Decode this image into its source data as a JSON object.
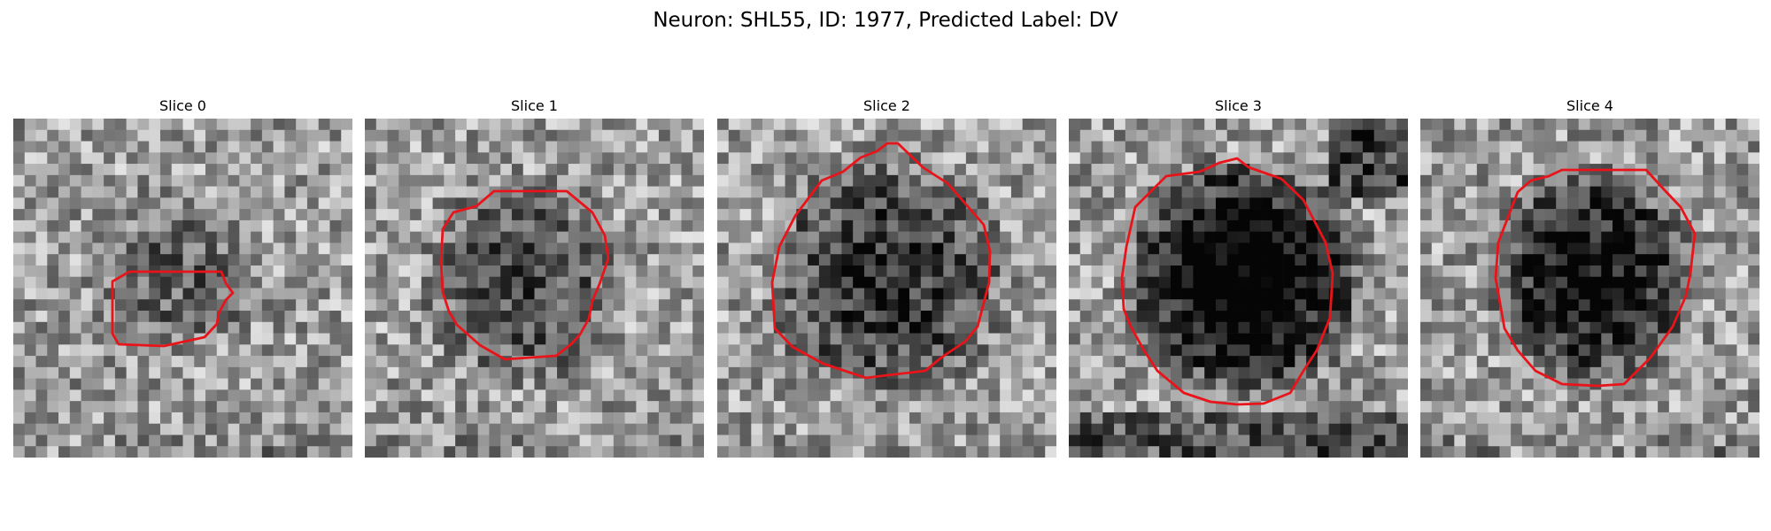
{
  "figure": {
    "title": "Neuron: SHL55, ID: 1977, Predicted Label: DV"
  },
  "colors": {
    "contour": "#e8141a",
    "background": "#ffffff"
  },
  "slices": [
    {
      "title": "Slice 0",
      "contour_color": "#e8141a",
      "darkness": 0.25
    },
    {
      "title": "Slice 1",
      "contour_color": "#e8141a",
      "darkness": 0.35
    },
    {
      "title": "Slice 2",
      "contour_color": "#e8141a",
      "darkness": 0.45
    },
    {
      "title": "Slice 3",
      "contour_color": "#e8141a",
      "darkness": 0.75
    },
    {
      "title": "Slice 4",
      "contour_color": "#e8141a",
      "darkness": 0.6
    }
  ]
}
